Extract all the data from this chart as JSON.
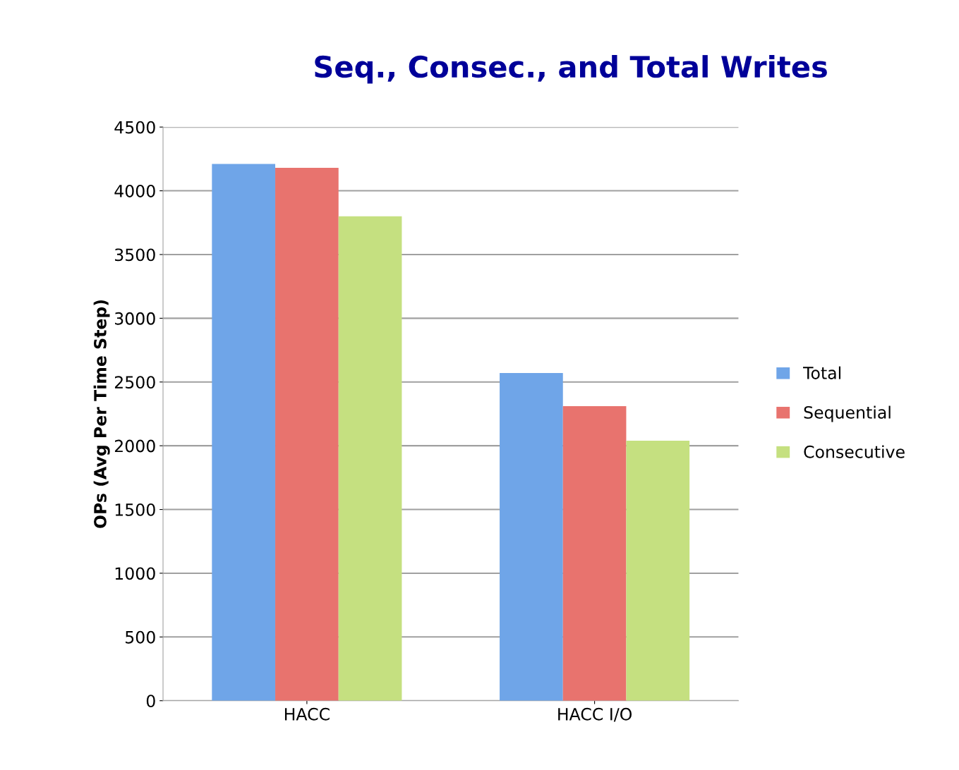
{
  "chart_data": {
    "type": "bar",
    "title": "Seq., Consec., and Total Writes",
    "ylabel": "OPs (Avg Per Time Step)",
    "categories": [
      "HACC",
      "HACC I/O"
    ],
    "series": [
      {
        "name": "Total",
        "color": "#6fa5e8",
        "values": [
          4210,
          2570
        ]
      },
      {
        "name": "Sequential",
        "color": "#e8736e",
        "values": [
          4180,
          2310
        ]
      },
      {
        "name": "Consecutive",
        "color": "#c5e080",
        "values": [
          3800,
          2040
        ]
      }
    ],
    "ylim": [
      0,
      4500
    ],
    "yticks": [
      0,
      500,
      1000,
      1500,
      2000,
      2500,
      3000,
      3500,
      4000,
      4500
    ],
    "grid": "y",
    "legend": "right"
  }
}
